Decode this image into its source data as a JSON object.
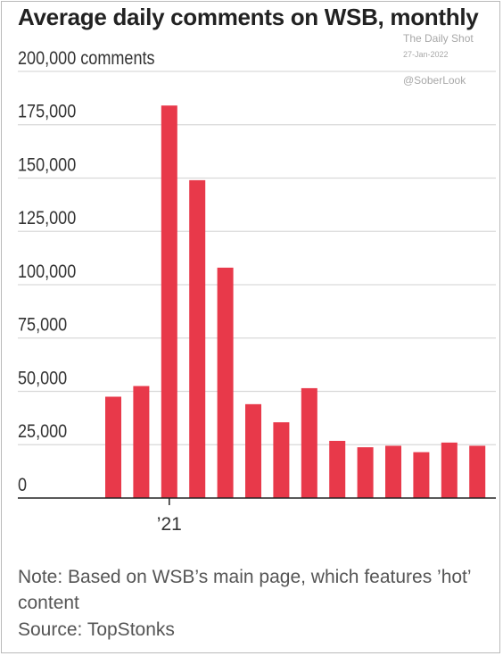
{
  "title": "Average daily comments on WSB, monthly",
  "watermark": {
    "line1": "The Daily Shot",
    "line2": "27-Jan-2022",
    "line3": "@SoberLook"
  },
  "note": "Note: Based on WSB’s main page, which features ’hot’ content",
  "source": "Source: TopStonks",
  "colors": {
    "bar": "#e8394a",
    "grid": "#d9d9d9",
    "axis": "#222222",
    "tick_text": "#333333"
  },
  "chart_data": {
    "type": "bar",
    "title": "Average daily comments on WSB, monthly",
    "ylabel": "comments",
    "ylim": [
      0,
      200000
    ],
    "y_ticks": [
      0,
      25000,
      50000,
      75000,
      100000,
      125000,
      150000,
      175000,
      200000
    ],
    "y_tick_labels": [
      "0",
      "25,000",
      "50,000",
      "75,000",
      "100,000",
      "125,000",
      "150,000",
      "175,000",
      "200,000 comments"
    ],
    "x_tick_labels": [
      {
        "index": 2,
        "label": "’21"
      }
    ],
    "grid": true,
    "values": [
      47500,
      52500,
      184000,
      149000,
      108000,
      44000,
      35500,
      51500,
      26800,
      23800,
      24500,
      21500,
      26000,
      24500
    ]
  }
}
